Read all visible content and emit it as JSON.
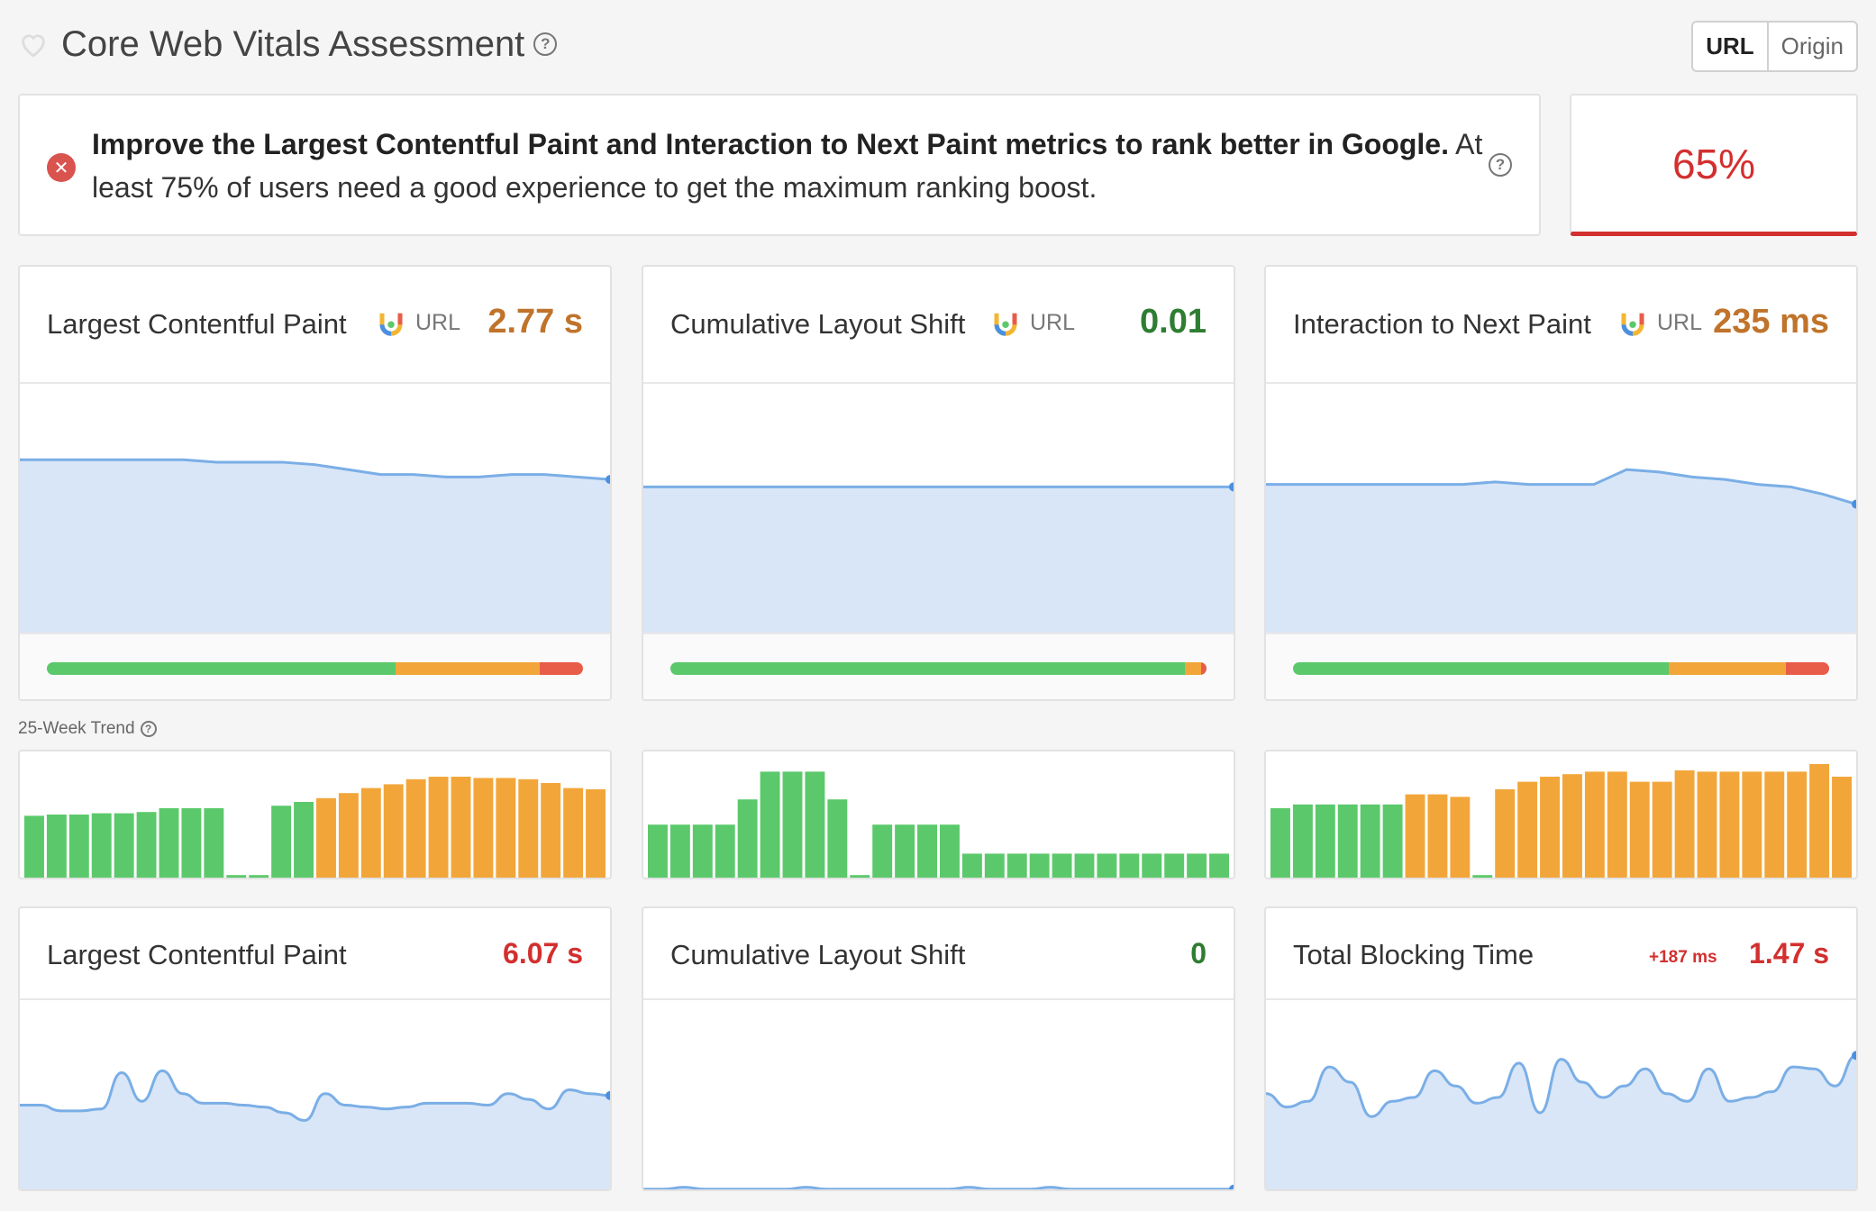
{
  "header": {
    "title": "Core Web Vitals Assessment",
    "help_glyph": "?",
    "toggle": [
      {
        "label": "URL",
        "active": true
      },
      {
        "label": "Origin",
        "active": false
      }
    ]
  },
  "alert": {
    "icon_glyph": "✕",
    "strong_text": "Improve the Largest Contentful Paint and Interaction to Next Paint metrics to rank better in Google.",
    "text": " At least 75% of users need a good experience to get the maximum ranking boost.",
    "help_glyph": "?"
  },
  "score": {
    "value": "65%"
  },
  "colors": {
    "good": "#5bc96b",
    "needs_improvement": "#f2a63a",
    "poor": "#e85c4a",
    "line": "#7aaee6",
    "fill": "#d9e6f7",
    "value_good": "#2e7d32",
    "value_ni": "#c0732a",
    "value_poor": "#d32f2f"
  },
  "field_cards": [
    {
      "label": "Largest Contentful Paint",
      "source": "URL",
      "value": "2.77 s",
      "status": "ni",
      "distribution": {
        "good": 0.65,
        "needs_improvement": 0.27,
        "poor": 0.08
      },
      "history": [
        0.7,
        0.7,
        0.7,
        0.7,
        0.7,
        0.7,
        0.69,
        0.69,
        0.69,
        0.68,
        0.66,
        0.64,
        0.64,
        0.63,
        0.63,
        0.64,
        0.64,
        0.63,
        0.62
      ]
    },
    {
      "label": "Cumulative Layout Shift",
      "source": "URL",
      "value": "0.01",
      "status": "good",
      "distribution": {
        "good": 0.96,
        "needs_improvement": 0.03,
        "poor": 0.01
      },
      "history": [
        0.59,
        0.59,
        0.59,
        0.59,
        0.59,
        0.59,
        0.59,
        0.59,
        0.59,
        0.59,
        0.59,
        0.59,
        0.59,
        0.59,
        0.59,
        0.59,
        0.59,
        0.59,
        0.59
      ]
    },
    {
      "label": "Interaction to Next Paint",
      "source": "URL",
      "value": "235 ms",
      "status": "ni",
      "distribution": {
        "good": 0.7,
        "needs_improvement": 0.22,
        "poor": 0.08
      },
      "history": [
        0.6,
        0.6,
        0.6,
        0.6,
        0.6,
        0.6,
        0.6,
        0.61,
        0.6,
        0.6,
        0.6,
        0.66,
        0.65,
        0.63,
        0.62,
        0.6,
        0.59,
        0.56,
        0.52
      ]
    }
  ],
  "trend": {
    "label": "25-Week Trend",
    "help_glyph": "?",
    "series": [
      {
        "metric": "Largest Contentful Paint",
        "values": [
          0.49,
          0.5,
          0.5,
          0.51,
          0.51,
          0.52,
          0.55,
          0.55,
          0.55,
          0.02,
          0.02,
          0.57,
          0.6,
          0.63,
          0.67,
          0.71,
          0.74,
          0.78,
          0.8,
          0.8,
          0.79,
          0.79,
          0.78,
          0.75,
          0.71,
          0.7
        ],
        "status": [
          "good",
          "good",
          "good",
          "good",
          "good",
          "good",
          "good",
          "good",
          "good",
          "good",
          "good",
          "good",
          "good",
          "ni",
          "ni",
          "ni",
          "ni",
          "ni",
          "ni",
          "ni",
          "ni",
          "ni",
          "ni",
          "ni",
          "ni",
          "ni"
        ]
      },
      {
        "metric": "Cumulative Layout Shift",
        "values": [
          0.42,
          0.42,
          0.42,
          0.42,
          0.62,
          0.84,
          0.84,
          0.84,
          0.62,
          0.02,
          0.42,
          0.42,
          0.42,
          0.42,
          0.19,
          0.19,
          0.19,
          0.19,
          0.19,
          0.19,
          0.19,
          0.19,
          0.19,
          0.19,
          0.19,
          0.19
        ],
        "status": [
          "good",
          "good",
          "good",
          "good",
          "good",
          "good",
          "good",
          "good",
          "good",
          "good",
          "good",
          "good",
          "good",
          "good",
          "good",
          "good",
          "good",
          "good",
          "good",
          "good",
          "good",
          "good",
          "good",
          "good",
          "good",
          "good"
        ]
      },
      {
        "metric": "Interaction to Next Paint",
        "values": [
          0.55,
          0.58,
          0.58,
          0.58,
          0.58,
          0.58,
          0.66,
          0.66,
          0.64,
          0.02,
          0.7,
          0.76,
          0.8,
          0.82,
          0.84,
          0.84,
          0.76,
          0.76,
          0.85,
          0.84,
          0.84,
          0.84,
          0.84,
          0.84,
          0.9,
          0.8
        ],
        "status": [
          "good",
          "good",
          "good",
          "good",
          "good",
          "good",
          "ni",
          "ni",
          "ni",
          "good",
          "ni",
          "ni",
          "ni",
          "ni",
          "ni",
          "ni",
          "ni",
          "ni",
          "ni",
          "ni",
          "ni",
          "ni",
          "ni",
          "ni",
          "ni",
          "ni"
        ]
      }
    ]
  },
  "lab_cards": [
    {
      "label": "Largest Contentful Paint",
      "value": "6.07 s",
      "status": "poor",
      "delta": "",
      "history": [
        0.46,
        0.46,
        0.43,
        0.43,
        0.44,
        0.63,
        0.48,
        0.64,
        0.52,
        0.47,
        0.47,
        0.46,
        0.45,
        0.42,
        0.38,
        0.52,
        0.46,
        0.45,
        0.44,
        0.45,
        0.47,
        0.47,
        0.47,
        0.46,
        0.52,
        0.49,
        0.44,
        0.54,
        0.52,
        0.51
      ]
    },
    {
      "label": "Cumulative Layout Shift",
      "value": "0",
      "status": "good",
      "delta": "",
      "history": [
        0.02,
        0.02,
        0.03,
        0.02,
        0.02,
        0.02,
        0.02,
        0.02,
        0.03,
        0.02,
        0.02,
        0.02,
        0.02,
        0.02,
        0.02,
        0.02,
        0.03,
        0.02,
        0.02,
        0.02,
        0.03,
        0.02,
        0.02,
        0.02,
        0.02,
        0.02,
        0.02,
        0.02,
        0.02,
        0.02
      ]
    },
    {
      "label": "Total Blocking Time",
      "value": "1.47 s",
      "status": "poor",
      "delta": "+187 ms",
      "history": [
        0.52,
        0.45,
        0.48,
        0.66,
        0.58,
        0.4,
        0.48,
        0.5,
        0.64,
        0.56,
        0.47,
        0.5,
        0.68,
        0.42,
        0.7,
        0.58,
        0.5,
        0.56,
        0.65,
        0.52,
        0.48,
        0.65,
        0.48,
        0.5,
        0.53,
        0.66,
        0.65,
        0.56,
        0.72
      ]
    }
  ]
}
